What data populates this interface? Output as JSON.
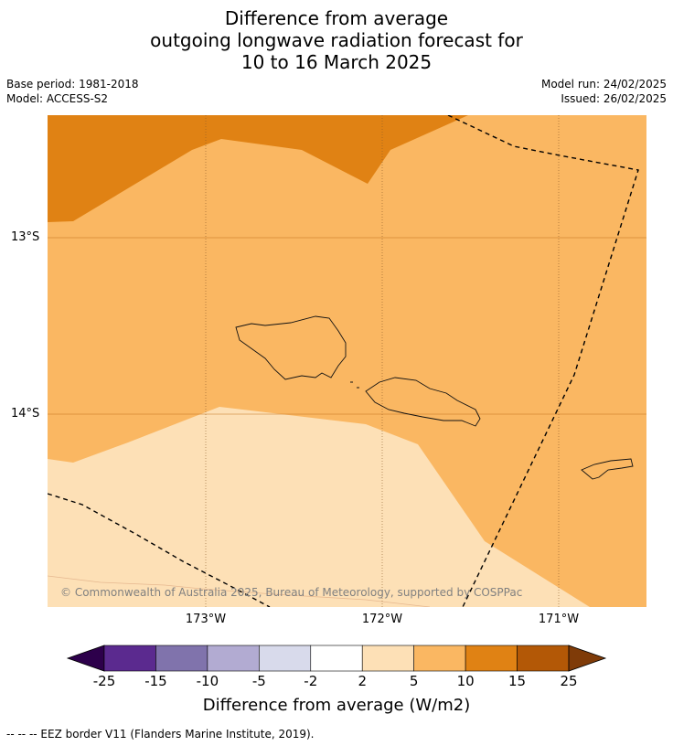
{
  "title": {
    "line1": "Difference from average",
    "line2": "outgoing longwave radiation forecast for",
    "line3": "10 to 16 March 2025"
  },
  "meta": {
    "base_period": "Base period: 1981-2018",
    "model": "Model: ACCESS-S2",
    "model_run": "Model run: 24/02/2025",
    "issued": "Issued: 26/02/2025"
  },
  "map": {
    "lat_labels": [
      "13°S",
      "14°S"
    ],
    "lon_labels": [
      "173°W",
      "172°W",
      "171°W"
    ],
    "copyright": "© Commonwealth of Australia 2025, Bureau of Meteorology, supported by COSPPac"
  },
  "colorbar": {
    "ticks": [
      "-25",
      "-15",
      "-10",
      "-5",
      "-2",
      "2",
      "5",
      "10",
      "15",
      "25"
    ],
    "colors": [
      "#2d004b",
      "#5b2a8f",
      "#8073ac",
      "#b2abd2",
      "#d8daeb",
      "#ffffff",
      "#fde0b6",
      "#fab762",
      "#e08214",
      "#b35806",
      "#7f3b08"
    ],
    "label": "Difference from average (W/m2)"
  },
  "legend_note": "--  --  -- EEZ border V11 (Flanders Marine Institute, 2019)."
}
